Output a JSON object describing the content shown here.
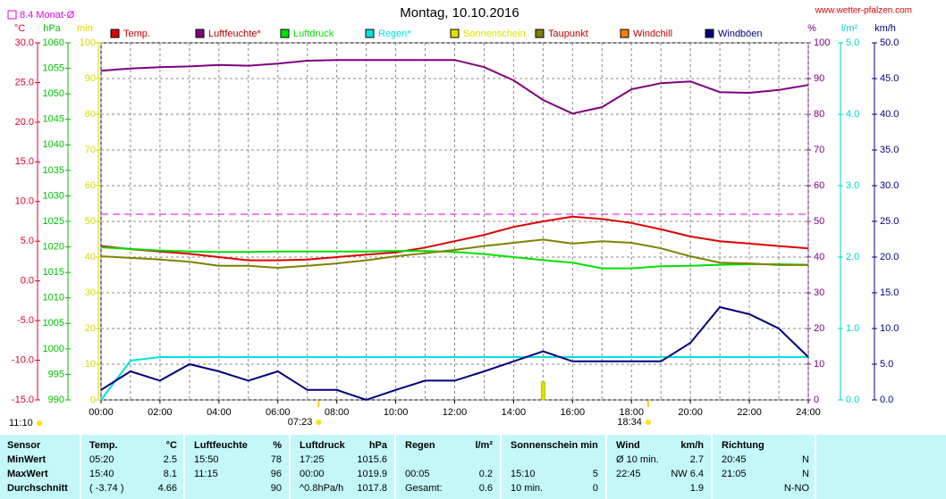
{
  "chart_data": {
    "type": "line",
    "title": "Montag, 10.10.2016",
    "watermark": "www.wetter-pfalzen.com",
    "monthly_avg": {
      "label": "8.4 Monat-Ø",
      "value": 8.4,
      "axis": "°C",
      "color": "#e000e0"
    },
    "x": [
      0,
      1,
      2,
      3,
      4,
      5,
      6,
      7,
      8,
      9,
      10,
      11,
      12,
      13,
      14,
      15,
      16,
      17,
      18,
      19,
      20,
      21,
      22,
      23,
      24
    ],
    "xlim": [
      0,
      24
    ],
    "xticks": [
      {
        "value": 0,
        "label": "00:00"
      },
      {
        "value": 2,
        "label": "02:00"
      },
      {
        "value": 4,
        "label": "04:00"
      },
      {
        "value": 6,
        "label": "06:00"
      },
      {
        "value": 8,
        "label": "08:00"
      },
      {
        "value": 10,
        "label": "10:00"
      },
      {
        "value": 12,
        "label": "12:00"
      },
      {
        "value": 14,
        "label": "14:00"
      },
      {
        "value": 16,
        "label": "16:00"
      },
      {
        "value": 18,
        "label": "18:00"
      },
      {
        "value": 20,
        "label": "20:00"
      },
      {
        "value": 22,
        "label": "22:00"
      },
      {
        "value": 24,
        "label": "24:00"
      }
    ],
    "xminorticks": [
      1,
      3,
      5,
      7,
      9,
      11,
      13,
      15,
      17,
      19,
      21,
      23
    ],
    "grid": true,
    "left_axes": [
      {
        "unit": "°C",
        "color": "#e00030",
        "lim": [
          -15,
          30
        ],
        "ticks": [
          {
            "value": 30,
            "label": "30.0"
          },
          {
            "value": 25,
            "label": "25.0"
          },
          {
            "value": 20,
            "label": "20.0"
          },
          {
            "value": 15,
            "label": "15.0"
          },
          {
            "value": 10,
            "label": "10.0"
          },
          {
            "value": 5,
            "label": "5.0"
          },
          {
            "value": 0,
            "label": "0.0"
          },
          {
            "value": -5,
            "label": "-5.0"
          },
          {
            "value": -10,
            "label": "-10.0"
          },
          {
            "value": -15,
            "label": "-15.0"
          }
        ]
      },
      {
        "unit": "hPa",
        "color": "#00c000",
        "lim": [
          990,
          1060
        ],
        "ticks": [
          1060,
          1055,
          1050,
          1045,
          1040,
          1035,
          1030,
          1025,
          1020,
          1015,
          1010,
          1005,
          1000,
          995,
          990
        ]
      },
      {
        "unit": "min",
        "color": "#d8d800",
        "lim": [
          0,
          100
        ],
        "ticks": [
          100,
          90,
          80,
          70,
          60,
          50,
          40,
          30,
          20,
          10,
          0
        ]
      }
    ],
    "right_axes": [
      {
        "unit": "%",
        "color": "#800080",
        "lim": [
          0,
          100
        ],
        "ticks": [
          100,
          90,
          80,
          70,
          60,
          50,
          40,
          30,
          20,
          10,
          0
        ]
      },
      {
        "unit": "l/m²",
        "color": "#00d0d0",
        "lim": [
          0,
          5
        ],
        "ticks": [
          {
            "value": 5,
            "label": "5.0"
          },
          {
            "value": 4,
            "label": "4.0"
          },
          {
            "value": 3,
            "label": "3.0"
          },
          {
            "value": 2,
            "label": "2.0"
          },
          {
            "value": 1,
            "label": "1.0"
          },
          {
            "value": 0,
            "label": "0.0"
          }
        ]
      },
      {
        "unit": "km/h",
        "color": "#000080",
        "lim": [
          0,
          50
        ],
        "ticks": [
          {
            "value": 50,
            "label": "50.0"
          },
          {
            "value": 45,
            "label": "45.0"
          },
          {
            "value": 40,
            "label": "40.0"
          },
          {
            "value": 35,
            "label": "35.0"
          },
          {
            "value": 30,
            "label": "30.0"
          },
          {
            "value": 25,
            "label": "25.0"
          },
          {
            "value": 20,
            "label": "20.0"
          },
          {
            "value": 15,
            "label": "15.0"
          },
          {
            "value": 10,
            "label": "10.0"
          },
          {
            "value": 5,
            "label": "5.0"
          },
          {
            "value": 0,
            "label": "0.0"
          }
        ]
      }
    ],
    "series": [
      {
        "name": "Temp.",
        "color": "#e00000",
        "axis": "°C",
        "style": "line",
        "values": [
          4.4,
          4.0,
          3.7,
          3.4,
          3.0,
          2.6,
          2.6,
          2.7,
          3.0,
          3.3,
          3.6,
          4.2,
          5.0,
          5.8,
          6.8,
          7.5,
          8.1,
          7.8,
          7.3,
          6.5,
          5.6,
          5.0,
          4.7,
          4.4,
          4.1
        ]
      },
      {
        "name": "Luftfeuchte*",
        "color": "#800080",
        "axis": "%",
        "style": "line",
        "values": [
          92.2,
          92.8,
          93.2,
          93.4,
          93.8,
          93.6,
          94.2,
          95.0,
          95.2,
          95.2,
          95.2,
          95.2,
          95.2,
          93.2,
          89.5,
          84.0,
          80.2,
          82.0,
          87.0,
          88.7,
          89.2,
          86.2,
          86.0,
          86.8,
          88.2
        ]
      },
      {
        "name": "Luftdruck",
        "color": "#00e000",
        "axis": "hPa",
        "style": "line",
        "values": [
          1019.9,
          1019.6,
          1019.3,
          1019.1,
          1019.0,
          1019.0,
          1019.1,
          1019.1,
          1019.1,
          1019.1,
          1019.2,
          1019.2,
          1019.0,
          1018.6,
          1018.0,
          1017.4,
          1016.9,
          1015.8,
          1015.8,
          1016.2,
          1016.3,
          1016.5,
          1016.6,
          1016.6,
          1016.5
        ]
      },
      {
        "name": "Regen*",
        "color": "#00e0e0",
        "axis": "l/m²",
        "style": "line",
        "values": [
          0,
          0.55,
          0.6,
          0.6,
          0.6,
          0.6,
          0.6,
          0.6,
          0.6,
          0.6,
          0.6,
          0.6,
          0.6,
          0.6,
          0.6,
          0.6,
          0.6,
          0.6,
          0.6,
          0.6,
          0.6,
          0.6,
          0.6,
          0.6,
          0.6
        ]
      },
      {
        "name": "Sonnenschein",
        "color": "#e0e000",
        "axis": "min",
        "style": "bars",
        "values": [
          null,
          null,
          null,
          null,
          null,
          null,
          null,
          null,
          null,
          null,
          null,
          null,
          null,
          null,
          null,
          5,
          null,
          null,
          null,
          null,
          null,
          null,
          null,
          null,
          null
        ]
      },
      {
        "name": "Taupunkt",
        "color": "#808000",
        "axis": "°C",
        "style": "line",
        "values": [
          3.1,
          2.9,
          2.7,
          2.4,
          1.9,
          1.9,
          1.65,
          1.9,
          2.2,
          2.6,
          3.1,
          3.5,
          3.9,
          4.4,
          4.8,
          5.2,
          4.7,
          5.0,
          4.8,
          4.1,
          3.1,
          2.3,
          2.2,
          2.0,
          2.0
        ]
      },
      {
        "name": "Windchill",
        "color": "#ff8000",
        "axis": "°C",
        "style": "line",
        "values": [
          null,
          null,
          null,
          null,
          null,
          null,
          null,
          null,
          null,
          null,
          null,
          null,
          null,
          null,
          null,
          null,
          null,
          null,
          null,
          null,
          null,
          null,
          null,
          null,
          null
        ]
      },
      {
        "name": "Windböen",
        "color": "#000080",
        "axis": "km/h",
        "style": "line",
        "values": [
          1.4,
          4,
          2.7,
          5,
          4,
          2.7,
          4,
          1.4,
          1.4,
          0,
          1.4,
          2.7,
          2.7,
          4,
          5.4,
          6.8,
          5.4,
          5.4,
          5.4,
          5.4,
          8,
          13,
          12,
          10,
          6
        ]
      }
    ],
    "day_length": "11:10",
    "sun_events": [
      {
        "value": 7.383,
        "label": "07:23"
      },
      {
        "value": 18.567,
        "label": "18:34"
      }
    ]
  },
  "stats_table": {
    "header": [
      "Sensor",
      [
        "Temp.",
        "°C"
      ],
      [
        "Luftfeuchte",
        "%"
      ],
      [
        "Luftdruck",
        "hPa"
      ],
      [
        "Regen",
        "l/m²"
      ],
      [
        "Sonnenschein min"
      ],
      [
        "Wind",
        "km/h"
      ],
      [
        "Richtung"
      ]
    ],
    "rows": [
      [
        "MinWert",
        [
          "05:20",
          "2.5"
        ],
        [
          "15:50",
          "78"
        ],
        [
          "17:25",
          "1015.6"
        ],
        null,
        null,
        [
          "Ø 10 min.",
          "2.7"
        ],
        [
          "20:45",
          "N"
        ]
      ],
      [
        "MaxWert",
        [
          "15:40",
          "8.1"
        ],
        [
          "11:15",
          "96"
        ],
        [
          "00:00",
          "1019.9"
        ],
        [
          "00:05",
          "0.2"
        ],
        [
          "15:10",
          "5"
        ],
        [
          "22:45",
          "NW 6.4"
        ],
        [
          "21:05",
          "N"
        ]
      ],
      [
        "Durchschnitt",
        [
          "( -3.74 )",
          "4.66"
        ],
        [
          null,
          "90"
        ],
        [
          "^0.8hPa/h",
          "1017.8"
        ],
        [
          "Gesamt:",
          "0.6"
        ],
        [
          "10 min.",
          "0"
        ],
        [
          null,
          "1.9"
        ],
        [
          null,
          "N-NO"
        ]
      ]
    ]
  }
}
